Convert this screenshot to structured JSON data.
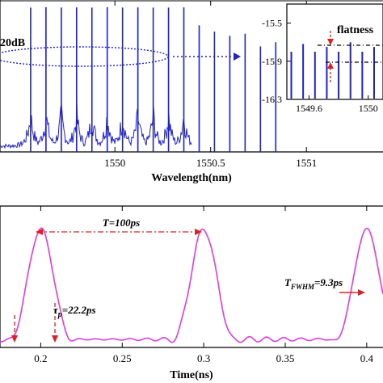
{
  "chart_data": [
    {
      "type": "line",
      "panel": "optical spectrum",
      "xlabel": "Wavelength(nm)",
      "ylabel": "",
      "xlim": [
        1549.4,
        1551.4
      ],
      "xticks": [
        "1550",
        "1550.5",
        "1551"
      ],
      "xtick_values": [
        1550,
        1550.5,
        1551
      ],
      "series": [
        {
          "x": [
            1549.56,
            1549.64,
            1549.72,
            1549.8,
            1549.88,
            1549.96,
            1550.04,
            1550.12,
            1550.2,
            1550.28,
            1550.36,
            1550.44,
            1550.52,
            1550.6,
            1550.68,
            1550.76,
            1550.84
          ],
          "y": [
            -15.8,
            -15.7,
            -15.8,
            -15.75,
            -15.8,
            -15.7,
            -15.8,
            -15.75,
            -15.8,
            -15.8,
            -15.75,
            -20.0,
            -21.5,
            -22.5,
            -22.0,
            -25.0,
            -24.0
          ]
        }
      ],
      "annotations": [
        "20dB"
      ],
      "inset": {
        "xlim": [
          1549.45,
          1550.1
        ],
        "ylim": [
          -16.3,
          -15.3
        ],
        "xticks": [
          "1549.6",
          "1550"
        ],
        "xtick_values": [
          1549.6,
          1550
        ],
        "yticks": [
          "-15.5",
          "-15.9",
          "-16.3"
        ],
        "ytick_values": [
          -15.5,
          -15.9,
          -16.3
        ],
        "annotation": "flatness",
        "lines_x": [
          1549.48,
          1549.56,
          1549.64,
          1549.72,
          1549.8,
          1549.88,
          1549.96,
          1550.04
        ],
        "lines_top": [
          -15.8,
          -15.72,
          -15.8,
          -15.75,
          -15.8,
          -15.7,
          -15.8,
          -15.75
        ]
      }
    },
    {
      "type": "line",
      "panel": "pulse train",
      "xlabel": "Time(ns)",
      "ylabel": "",
      "xlim": [
        0.175,
        0.41
      ],
      "xticks": [
        "0.2",
        "0.25",
        "0.3",
        "0.35",
        "0.4"
      ],
      "xtick_values": [
        0.2,
        0.25,
        0.3,
        0.35,
        0.4
      ],
      "pulse_centers_ns": [
        0.2,
        0.3,
        0.4
      ],
      "period_ps": 100,
      "annotations": {
        "period": "T=100ps",
        "tau_symbol": "τ",
        "tau_sub": "p",
        "tau_value": "=22.2ps",
        "fwhm_symbol": "T",
        "fwhm_sub": "FWHM",
        "fwhm_value": "=9.3ps"
      }
    }
  ],
  "colors": {
    "spectrum": "#1f1fd6",
    "pulse": "#e03ce0",
    "arrow_red": "#e02020"
  }
}
